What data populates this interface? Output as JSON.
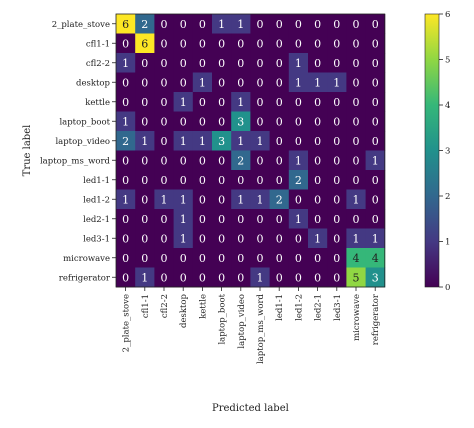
{
  "chart_data": {
    "type": "heatmap",
    "xlabel": "Predicted label",
    "ylabel": "True label",
    "labels": [
      "2_plate_stove",
      "cfl1-1",
      "cfl2-2",
      "desktop",
      "kettle",
      "laptop_boot",
      "laptop_video",
      "laptop_ms_word",
      "led1-1",
      "led1-2",
      "led2-1",
      "led3-1",
      "microwave",
      "refrigerator"
    ],
    "matrix": [
      [
        6,
        2,
        0,
        0,
        0,
        1,
        1,
        0,
        0,
        0,
        0,
        0,
        0,
        0
      ],
      [
        0,
        6,
        0,
        0,
        0,
        0,
        0,
        0,
        0,
        0,
        0,
        0,
        0,
        0
      ],
      [
        1,
        0,
        0,
        0,
        0,
        0,
        0,
        0,
        0,
        1,
        0,
        0,
        0,
        0
      ],
      [
        0,
        0,
        0,
        0,
        1,
        0,
        0,
        0,
        0,
        1,
        1,
        1,
        0,
        0
      ],
      [
        0,
        0,
        0,
        1,
        0,
        0,
        1,
        0,
        0,
        0,
        0,
        0,
        0,
        0
      ],
      [
        1,
        0,
        0,
        0,
        0,
        0,
        3,
        0,
        0,
        0,
        0,
        0,
        0,
        0
      ],
      [
        2,
        1,
        0,
        1,
        1,
        3,
        1,
        1,
        0,
        0,
        0,
        0,
        0,
        0
      ],
      [
        0,
        0,
        0,
        0,
        0,
        0,
        2,
        0,
        0,
        1,
        0,
        0,
        0,
        1
      ],
      [
        0,
        0,
        0,
        0,
        0,
        0,
        0,
        0,
        0,
        2,
        0,
        0,
        0,
        0
      ],
      [
        1,
        0,
        1,
        1,
        0,
        0,
        1,
        1,
        2,
        0,
        0,
        0,
        1,
        0
      ],
      [
        0,
        0,
        0,
        1,
        0,
        0,
        0,
        0,
        0,
        1,
        0,
        0,
        0,
        0
      ],
      [
        0,
        0,
        0,
        1,
        0,
        0,
        0,
        0,
        0,
        0,
        1,
        0,
        1,
        1
      ],
      [
        0,
        0,
        0,
        0,
        0,
        0,
        0,
        0,
        0,
        0,
        0,
        0,
        4,
        4
      ],
      [
        0,
        1,
        0,
        0,
        0,
        0,
        0,
        1,
        0,
        0,
        0,
        0,
        5,
        3
      ]
    ],
    "colorbar": {
      "min": 0,
      "max": 6,
      "ticks": [
        0,
        1,
        2,
        3,
        4,
        5,
        6
      ]
    },
    "colormap": "viridis",
    "grid": false,
    "legend": "colorbar-right"
  }
}
